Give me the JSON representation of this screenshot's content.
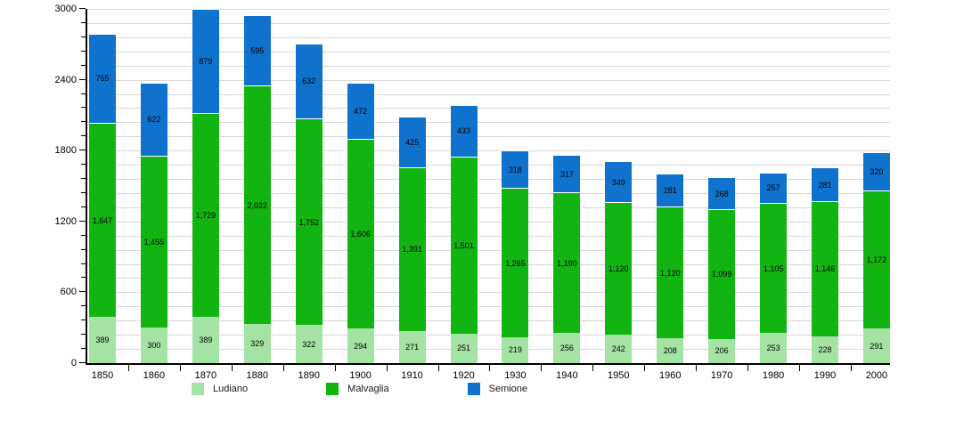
{
  "chart_data": {
    "type": "bar",
    "stacked": true,
    "title": "",
    "xlabel": "",
    "ylabel": "",
    "categories": [
      "1850",
      "1860",
      "1870",
      "1880",
      "1890",
      "1900",
      "1910",
      "1920",
      "1930",
      "1940",
      "1950",
      "1960",
      "1970",
      "1980",
      "1990",
      "2000"
    ],
    "series": [
      {
        "name": "Ludiano",
        "color": "#a5e3a5",
        "values": [
          389,
          300,
          389,
          329,
          322,
          294,
          271,
          251,
          219,
          256,
          242,
          208,
          206,
          253,
          228,
          291
        ]
      },
      {
        "name": "Malvaglia",
        "color": "#12b412",
        "values": [
          1647,
          1455,
          1729,
          2022,
          1752,
          1606,
          1391,
          1501,
          1265,
          1190,
          1120,
          1120,
          1099,
          1105,
          1146,
          1172
        ]
      },
      {
        "name": "Semione",
        "color": "#0f72cd",
        "values": [
          755,
          622,
          879,
          595,
          632,
          472,
          425,
          433,
          318,
          317,
          349,
          281,
          268,
          257,
          281,
          320
        ]
      }
    ],
    "ylim": [
      0,
      3000
    ],
    "y_major_ticks": [
      0,
      600,
      1200,
      1800,
      2400,
      3000
    ],
    "y_minor_step": 120,
    "grid": true,
    "gridline_color": "#d9d9d9",
    "value_labels": "inside-center",
    "legend_position": "bottom"
  },
  "legend": {
    "items": [
      {
        "label": "Ludiano"
      },
      {
        "label": "Malvaglia"
      },
      {
        "label": "Semione"
      }
    ]
  }
}
